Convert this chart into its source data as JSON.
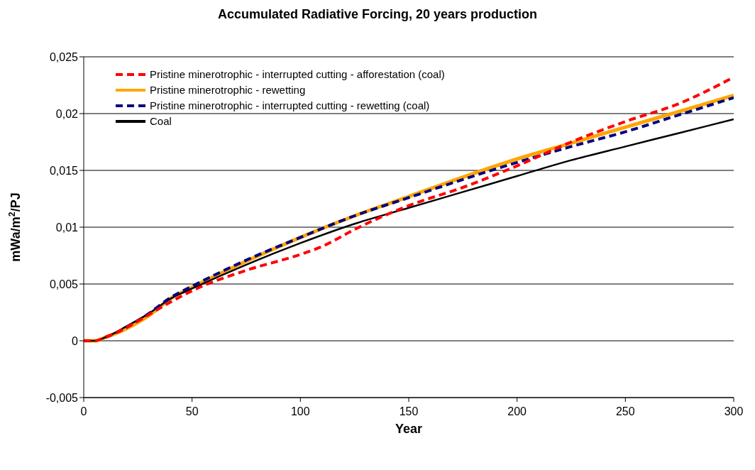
{
  "chart_data": {
    "type": "line",
    "title": "Accumulated Radiative Forcing, 20 years production",
    "xlabel": "Year",
    "ylabel": "mWa/m$^{2}$/PJ",
    "xlim": [
      0,
      300
    ],
    "xticks": [
      0,
      50,
      100,
      150,
      200,
      250,
      300
    ],
    "ylim": [
      -0.005,
      0.025
    ],
    "yticks": [
      {
        "value": -0.005,
        "label": "-0,005"
      },
      {
        "value": 0,
        "label": "0"
      },
      {
        "value": 0.005,
        "label": "0,005"
      },
      {
        "value": 0.01,
        "label": "0,01"
      },
      {
        "value": 0.015,
        "label": "0,015"
      },
      {
        "value": 0.02,
        "label": "0,02"
      },
      {
        "value": 0.025,
        "label": "0,025"
      }
    ],
    "grid": "y",
    "legend": "top left",
    "marker": "none",
    "series": [
      {
        "name": "Pristine minerotrophic - interrupted cutting - afforestation (coal)",
        "color": "#ff0000",
        "line_style": "dashed",
        "x": [
          0,
          5,
          10,
          20,
          30,
          40,
          50,
          75,
          100,
          110,
          125,
          150,
          175,
          200,
          225,
          250,
          275,
          300
        ],
        "values": [
          0,
          0,
          0.0003,
          0.0012,
          0.0023,
          0.0034,
          0.0044,
          0.0062,
          0.0076,
          0.0083,
          0.0098,
          0.0119,
          0.0135,
          0.0154,
          0.0175,
          0.0193,
          0.0209,
          0.0232
        ]
      },
      {
        "name": "Pristine minerotrophic - rewetting",
        "color": "#ffa500",
        "line_style": "solid",
        "x": [
          0,
          5,
          10,
          20,
          30,
          40,
          50,
          75,
          100,
          125,
          150,
          175,
          200,
          225,
          250,
          275,
          300
        ],
        "values": [
          0,
          0,
          0.0003,
          0.0011,
          0.0022,
          0.0037,
          0.0047,
          0.007,
          0.0091,
          0.011,
          0.0127,
          0.0144,
          0.016,
          0.0174,
          0.0188,
          0.0202,
          0.0216
        ]
      },
      {
        "name": "Pristine minerotrophic - interrupted cutting - rewetting (coal)",
        "color": "#000080",
        "line_style": "dashed",
        "x": [
          10,
          20,
          30,
          40,
          50,
          75,
          100,
          125,
          150,
          175,
          200,
          225,
          250,
          275,
          300
        ],
        "values": [
          0.0003,
          0.0012,
          0.0024,
          0.0038,
          0.0048,
          0.0071,
          0.0091,
          0.011,
          0.0126,
          0.0142,
          0.0157,
          0.0171,
          0.0184,
          0.0199,
          0.0214
        ]
      },
      {
        "name": "Coal",
        "color": "#000000",
        "line_style": "solid",
        "x": [
          0,
          5,
          10,
          20,
          30,
          40,
          50,
          75,
          100,
          125,
          150,
          175,
          200,
          225,
          250,
          275,
          300
        ],
        "values": [
          0,
          0,
          0.0003,
          0.0013,
          0.0024,
          0.0037,
          0.0046,
          0.0067,
          0.0086,
          0.0103,
          0.0117,
          0.0131,
          0.0145,
          0.0159,
          0.0171,
          0.0183,
          0.0195
        ]
      }
    ]
  }
}
